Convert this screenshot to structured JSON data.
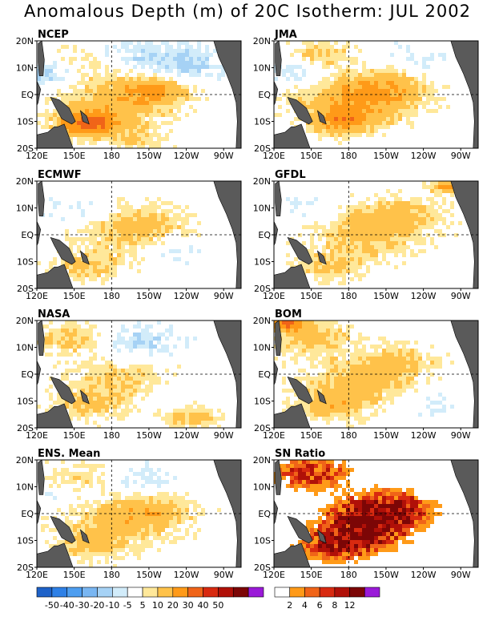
{
  "title": "Anomalous Depth (m) of 20C Isotherm: JUL 2002",
  "chart_data": [
    {
      "type": "heatmap",
      "title": "NCEP",
      "metric": "anomaly",
      "x_ticks": [
        "120E",
        "150E",
        "180",
        "150W",
        "120W",
        "90W"
      ],
      "y_ticks": [
        "20N",
        "10N",
        "EQ",
        "10S",
        "20S"
      ],
      "features": [
        {
          "lon": 180,
          "lat": -4,
          "value": 15,
          "spread": 1.0
        },
        {
          "lon": 215,
          "lat": 2,
          "value": 20,
          "spread": 0.6
        },
        {
          "lon": 160,
          "lat": -11,
          "value": 30,
          "spread": 0.5
        },
        {
          "lon": 165,
          "lat": 12,
          "value": 10,
          "spread": 0.8
        },
        {
          "lon": 235,
          "lat": 11,
          "value": -12,
          "spread": 0.8
        },
        {
          "lon": 185,
          "lat": 15,
          "value": -10,
          "spread": 0.7
        },
        {
          "lon": 128,
          "lat": 8,
          "value": -15,
          "spread": 0.5
        },
        {
          "lon": 200,
          "lat": -17,
          "value": 8,
          "spread": 0.6
        }
      ]
    },
    {
      "type": "heatmap",
      "title": "JMA",
      "metric": "anomaly",
      "x_ticks": [
        "120E",
        "150E",
        "180",
        "150W",
        "120W",
        "90W"
      ],
      "y_ticks": [
        "20N",
        "10N",
        "EQ",
        "10S",
        "20S"
      ],
      "features": [
        {
          "lon": 185,
          "lat": -3,
          "value": 18,
          "spread": 1.0
        },
        {
          "lon": 210,
          "lat": 3,
          "value": 14,
          "spread": 0.8
        },
        {
          "lon": 158,
          "lat": 15,
          "value": 12,
          "spread": 0.6
        },
        {
          "lon": 175,
          "lat": -10,
          "value": 20,
          "spread": 0.5
        },
        {
          "lon": 140,
          "lat": 9,
          "value": -10,
          "spread": 0.5
        },
        {
          "lon": 230,
          "lat": 12,
          "value": -6,
          "spread": 0.7
        }
      ]
    },
    {
      "type": "heatmap",
      "title": "ECMWF",
      "metric": "anomaly",
      "x_ticks": [
        "120E",
        "150E",
        "180",
        "150W",
        "120W",
        "90W"
      ],
      "y_ticks": [
        "20N",
        "10N",
        "EQ",
        "10S",
        "20S"
      ],
      "features": [
        {
          "lon": 190,
          "lat": 0,
          "value": 10,
          "spread": 1.0
        },
        {
          "lon": 160,
          "lat": -12,
          "value": 12,
          "spread": 0.6
        },
        {
          "lon": 210,
          "lat": 5,
          "value": 8,
          "spread": 0.7
        },
        {
          "lon": 150,
          "lat": 8,
          "value": -6,
          "spread": 0.6
        },
        {
          "lon": 230,
          "lat": -6,
          "value": -6,
          "spread": 0.6
        }
      ]
    },
    {
      "type": "heatmap",
      "title": "GFDL",
      "metric": "anomaly",
      "x_ticks": [
        "120E",
        "150E",
        "180",
        "150W",
        "120W",
        "90W"
      ],
      "y_ticks": [
        "20N",
        "10N",
        "EQ",
        "10S",
        "20S"
      ],
      "features": [
        {
          "lon": 195,
          "lat": 1,
          "value": 15,
          "spread": 1.0
        },
        {
          "lon": 165,
          "lat": -12,
          "value": 12,
          "spread": 0.6
        },
        {
          "lon": 225,
          "lat": 8,
          "value": 10,
          "spread": 0.7
        },
        {
          "lon": 148,
          "lat": 10,
          "value": -6,
          "spread": 0.6
        },
        {
          "lon": 262,
          "lat": 18,
          "value": 25,
          "spread": 0.3
        }
      ]
    },
    {
      "type": "heatmap",
      "title": "NASA",
      "metric": "anomaly",
      "x_ticks": [
        "120E",
        "150E",
        "180",
        "150W",
        "120W",
        "90W"
      ],
      "y_ticks": [
        "20N",
        "10N",
        "EQ",
        "10S",
        "20S"
      ],
      "features": [
        {
          "lon": 190,
          "lat": -3,
          "value": 12,
          "spread": 1.0
        },
        {
          "lon": 150,
          "lat": 13,
          "value": 12,
          "spread": 0.7
        },
        {
          "lon": 160,
          "lat": -12,
          "value": 10,
          "spread": 0.6
        },
        {
          "lon": 245,
          "lat": -16,
          "value": 14,
          "spread": 0.5
        },
        {
          "lon": 200,
          "lat": 12,
          "value": -10,
          "spread": 0.8
        },
        {
          "lon": 225,
          "lat": -8,
          "value": -6,
          "spread": 0.7
        }
      ]
    },
    {
      "type": "heatmap",
      "title": "BOM",
      "metric": "anomaly",
      "x_ticks": [
        "120E",
        "150E",
        "180",
        "150W",
        "120W",
        "90W"
      ],
      "y_ticks": [
        "20N",
        "10N",
        "EQ",
        "10S",
        "20S"
      ],
      "features": [
        {
          "lon": 190,
          "lat": -3,
          "value": 14,
          "spread": 1.0
        },
        {
          "lon": 150,
          "lat": 14,
          "value": 14,
          "spread": 0.7
        },
        {
          "lon": 165,
          "lat": -12,
          "value": 14,
          "spread": 0.6
        },
        {
          "lon": 220,
          "lat": 5,
          "value": 10,
          "spread": 0.7
        },
        {
          "lon": 130,
          "lat": 19,
          "value": 30,
          "spread": 0.3
        },
        {
          "lon": 240,
          "lat": -10,
          "value": -6,
          "spread": 0.6
        }
      ]
    },
    {
      "type": "heatmap",
      "title": "ENS. Mean",
      "metric": "anomaly",
      "x_ticks": [
        "120E",
        "150E",
        "180",
        "150W",
        "120W",
        "90W"
      ],
      "y_ticks": [
        "20N",
        "10N",
        "EQ",
        "10S",
        "20S"
      ],
      "features": [
        {
          "lon": 190,
          "lat": -2,
          "value": 14,
          "spread": 1.0
        },
        {
          "lon": 155,
          "lat": 13,
          "value": 10,
          "spread": 0.7
        },
        {
          "lon": 165,
          "lat": -12,
          "value": 12,
          "spread": 0.6
        },
        {
          "lon": 215,
          "lat": 2,
          "value": 10,
          "spread": 0.7
        },
        {
          "lon": 200,
          "lat": 11,
          "value": -8,
          "spread": 0.8
        },
        {
          "lon": 140,
          "lat": 7,
          "value": -6,
          "spread": 0.5
        }
      ]
    },
    {
      "type": "heatmap",
      "title": "SN Ratio",
      "metric": "ratio",
      "x_ticks": [
        "120E",
        "150E",
        "180",
        "150W",
        "120W",
        "90W"
      ],
      "y_ticks": [
        "20N",
        "10N",
        "EQ",
        "10S",
        "20S"
      ],
      "features": [
        {
          "lon": 200,
          "lat": -1,
          "value": 12,
          "spread": 0.7
        },
        {
          "lon": 190,
          "lat": -7,
          "value": 10,
          "spread": 0.6
        },
        {
          "lon": 215,
          "lat": 2,
          "value": 8,
          "spread": 0.6
        },
        {
          "lon": 150,
          "lat": 15,
          "value": 8,
          "spread": 0.6
        },
        {
          "lon": 170,
          "lat": -12,
          "value": 8,
          "spread": 0.6
        }
      ]
    }
  ],
  "legends": {
    "anomaly": {
      "labels": [
        "-50",
        "-40",
        "-30",
        "-20",
        "-10",
        "-5",
        "5",
        "10",
        "20",
        "30",
        "40",
        "50"
      ],
      "colors": [
        "#1e62c8",
        "#2e80e6",
        "#4e9ef0",
        "#79b6f2",
        "#a6d2f5",
        "#d2ecfa",
        "#ffffff",
        "#ffe89a",
        "#ffc24a",
        "#ff9a18",
        "#f06418",
        "#d82a10",
        "#b01008",
        "#7c0606",
        "#9a1ad8"
      ]
    },
    "ratio": {
      "labels": [
        "2",
        "4",
        "6",
        "8",
        "12"
      ],
      "colors": [
        "#ffffff",
        "#ff9a18",
        "#f06418",
        "#d82a10",
        "#b01008",
        "#7c0606",
        "#9a1ad8"
      ]
    }
  },
  "colors": {
    "land": "#5a5a5a",
    "frame": "#000000"
  }
}
